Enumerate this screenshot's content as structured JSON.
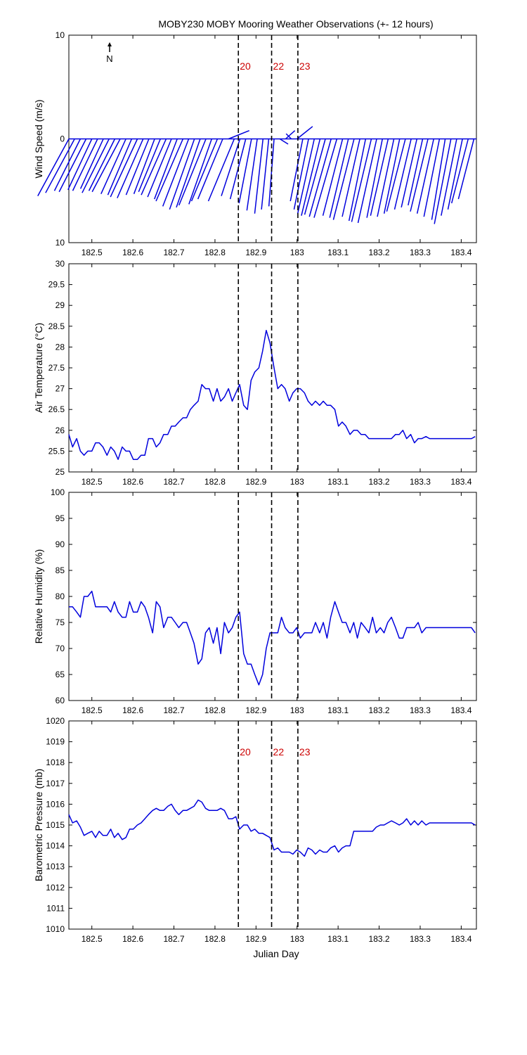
{
  "figure": {
    "title": "MOBY230 MOBY Mooring Weather Observations (+- 12 hours)",
    "xlabel": "Julian Day",
    "north_label": "N",
    "event_labels": [
      "20",
      "22",
      "23"
    ],
    "event_days": [
      182.857,
      182.938,
      183.002
    ],
    "colors": {
      "series": "#0000dd",
      "event_text": "#cc0000",
      "axes": "#000000"
    }
  },
  "chart_data": [
    {
      "type": "line",
      "subtype": "wind-stick",
      "ylabel": "Wind Speed (m/s)",
      "ylim": [
        -10,
        10
      ],
      "yticks": [
        10,
        0,
        10
      ],
      "xlim": [
        182.444,
        183.437
      ],
      "xticks": [
        "182.5",
        "182.6",
        "182.7",
        "182.8",
        "182.9",
        "183",
        "183.1",
        "183.2",
        "183.3",
        "183.4"
      ],
      "xtick_values": [
        182.5,
        182.6,
        182.7,
        182.8,
        182.9,
        183.0,
        183.1,
        183.2,
        183.3,
        183.4
      ],
      "x": [
        182.444,
        182.458,
        182.472,
        182.486,
        182.5,
        182.514,
        182.528,
        182.542,
        182.556,
        182.569,
        182.583,
        182.597,
        182.611,
        182.625,
        182.639,
        182.653,
        182.667,
        182.681,
        182.694,
        182.708,
        182.722,
        182.736,
        182.75,
        182.764,
        182.778,
        182.792,
        182.806,
        182.819,
        182.833,
        182.847,
        182.861,
        182.875,
        182.889,
        182.903,
        182.917,
        182.931,
        182.944,
        182.958,
        182.972,
        182.986,
        183.0,
        183.014,
        183.028,
        183.042,
        183.056,
        183.069,
        183.083,
        183.097,
        183.111,
        183.125,
        183.139,
        183.153,
        183.167,
        183.181,
        183.194,
        183.208,
        183.222,
        183.236,
        183.25,
        183.264,
        183.278,
        183.292,
        183.306,
        183.319,
        183.333,
        183.347,
        183.361,
        183.375,
        183.389,
        183.403,
        183.417,
        183.431
      ],
      "u": [
        -3.0,
        -2.8,
        -2.5,
        -2.6,
        -2.3,
        -2.4,
        -2.2,
        -2.6,
        -2.5,
        -2.7,
        -2.4,
        -2.3,
        -2.6,
        -2.5,
        -2.2,
        -2.0,
        -2.1,
        -2.4,
        -2.3,
        -2.2,
        -2.6,
        -2.5,
        -2.4,
        -2.3,
        -2.6,
        -2.2,
        -2.5,
        -2.4,
        2.0,
        -2.5,
        -1.8,
        -1.5,
        -1.2,
        -1.0,
        -0.8,
        -0.7,
        -0.5,
        0.8,
        0.9,
        -0.5,
        1.5,
        -1.2,
        -1.4,
        -1.6,
        -1.8,
        -2.0,
        -2.1,
        -2.2,
        -1.9,
        -1.8,
        -2.0,
        -1.7,
        -1.6,
        -1.9,
        -1.8,
        -1.5,
        -1.7,
        -1.6,
        -1.5,
        -1.8,
        -1.6,
        -1.5,
        -1.4,
        -1.7,
        -1.6,
        -1.5,
        -1.3,
        -1.6,
        -1.5,
        -1.4,
        -1.6,
        -1.5
      ],
      "v": [
        -5.5,
        -5.2,
        -5.0,
        -5.1,
        -4.9,
        -5.0,
        -4.8,
        -5.2,
        -5.0,
        -5.1,
        -5.3,
        -5.4,
        -5.6,
        -5.7,
        -5.4,
        -5.3,
        -5.1,
        -5.4,
        -5.6,
        -5.8,
        -6.0,
        -6.5,
        -6.8,
        -6.6,
        -6.4,
        -6.3,
        -6.0,
        -5.8,
        0.8,
        -6.0,
        -5.5,
        -5.8,
        -6.2,
        -6.9,
        -7.2,
        -6.8,
        -6.5,
        -0.5,
        0.8,
        0.5,
        1.2,
        -6.0,
        -6.8,
        -7.2,
        -7.4,
        -7.3,
        -7.5,
        -7.6,
        -7.4,
        -7.6,
        -7.8,
        -7.5,
        -7.9,
        -8.0,
        -8.1,
        -7.6,
        -7.4,
        -7.5,
        -7.2,
        -7.0,
        -6.8,
        -6.6,
        -6.4,
        -7.0,
        -7.2,
        -7.5,
        -7.8,
        -8.2,
        -7.4,
        -6.8,
        -6.2,
        -5.8
      ]
    },
    {
      "type": "line",
      "ylabel": "Air Temperature (°C)",
      "ylim": [
        25,
        30
      ],
      "yticks": [
        25,
        25.5,
        26,
        26.5,
        27,
        27.5,
        28,
        28.5,
        29,
        29.5,
        30
      ],
      "xlim": [
        182.444,
        183.437
      ],
      "xticks": [
        "182.5",
        "182.6",
        "182.7",
        "182.8",
        "182.9",
        "183",
        "183.1",
        "183.2",
        "183.3",
        "183.4"
      ],
      "xtick_values": [
        182.5,
        182.6,
        182.7,
        182.8,
        182.9,
        183.0,
        183.1,
        183.2,
        183.3,
        183.4
      ],
      "x": [
        182.444,
        182.453,
        182.463,
        182.472,
        182.481,
        182.49,
        182.5,
        182.509,
        182.518,
        182.527,
        182.537,
        182.546,
        182.555,
        182.564,
        182.574,
        182.583,
        182.592,
        182.601,
        182.611,
        182.62,
        182.629,
        182.638,
        182.648,
        182.657,
        182.666,
        182.675,
        182.685,
        182.694,
        182.703,
        182.712,
        182.722,
        182.731,
        182.74,
        182.749,
        182.759,
        182.768,
        182.777,
        182.786,
        182.796,
        182.805,
        182.814,
        182.823,
        182.833,
        182.842,
        182.851,
        182.86,
        182.87,
        182.879,
        182.888,
        182.897,
        182.907,
        182.916,
        182.925,
        182.934,
        182.944,
        182.953,
        182.962,
        182.971,
        182.981,
        182.99,
        182.999,
        183.008,
        183.018,
        183.027,
        183.036,
        183.045,
        183.055,
        183.064,
        183.073,
        183.082,
        183.092,
        183.101,
        183.11,
        183.119,
        183.129,
        183.138,
        183.147,
        183.156,
        183.166,
        183.175,
        183.184,
        183.193,
        183.203,
        183.212,
        183.221,
        183.23,
        183.24,
        183.249,
        183.258,
        183.267,
        183.277,
        183.286,
        183.295,
        183.304,
        183.314,
        183.323,
        183.332,
        183.341,
        183.351,
        183.36,
        183.369,
        183.378,
        183.388,
        183.397,
        183.406,
        183.415,
        183.425,
        183.434
      ],
      "y": [
        25.9,
        25.6,
        25.8,
        25.5,
        25.4,
        25.5,
        25.5,
        25.7,
        25.7,
        25.6,
        25.4,
        25.6,
        25.5,
        25.3,
        25.6,
        25.5,
        25.5,
        25.3,
        25.3,
        25.4,
        25.4,
        25.8,
        25.8,
        25.6,
        25.7,
        25.9,
        25.9,
        26.1,
        26.1,
        26.2,
        26.3,
        26.3,
        26.5,
        26.6,
        26.7,
        27.1,
        27.0,
        27.0,
        26.7,
        27.0,
        26.7,
        26.8,
        27.0,
        26.7,
        26.9,
        27.1,
        26.6,
        26.5,
        27.2,
        27.4,
        27.5,
        27.9,
        28.4,
        28.1,
        27.5,
        27.0,
        27.1,
        27.0,
        26.7,
        26.9,
        27.0,
        27.0,
        26.9,
        26.7,
        26.6,
        26.7,
        26.6,
        26.7,
        26.6,
        26.6,
        26.5,
        26.1,
        26.2,
        26.1,
        25.9,
        26.0,
        26.0,
        25.9,
        25.9,
        25.8,
        25.8,
        25.8,
        25.8,
        25.8,
        25.8,
        25.8,
        25.9,
        25.9,
        26.0,
        25.8,
        25.9,
        25.7,
        25.8,
        25.8,
        25.85,
        25.8,
        25.8,
        25.8,
        25.8,
        25.8,
        25.8,
        25.8,
        25.8,
        25.8,
        25.8,
        25.8,
        25.8,
        25.85
      ]
    },
    {
      "type": "line",
      "ylabel": "Relative Humidity (%)",
      "ylim": [
        60,
        100
      ],
      "yticks": [
        60,
        65,
        70,
        75,
        80,
        85,
        90,
        95,
        100
      ],
      "xlim": [
        182.444,
        183.437
      ],
      "xticks": [
        "182.5",
        "182.6",
        "182.7",
        "182.8",
        "182.9",
        "183",
        "183.1",
        "183.2",
        "183.3",
        "183.4"
      ],
      "xtick_values": [
        182.5,
        182.6,
        182.7,
        182.8,
        182.9,
        183.0,
        183.1,
        183.2,
        183.3,
        183.4
      ],
      "x": [
        182.444,
        182.453,
        182.463,
        182.472,
        182.481,
        182.49,
        182.5,
        182.509,
        182.518,
        182.527,
        182.537,
        182.546,
        182.555,
        182.564,
        182.574,
        182.583,
        182.592,
        182.601,
        182.611,
        182.62,
        182.629,
        182.638,
        182.648,
        182.657,
        182.666,
        182.675,
        182.685,
        182.694,
        182.703,
        182.712,
        182.722,
        182.731,
        182.74,
        182.749,
        182.759,
        182.768,
        182.777,
        182.786,
        182.796,
        182.805,
        182.814,
        182.823,
        182.833,
        182.842,
        182.851,
        182.86,
        182.87,
        182.879,
        182.888,
        182.897,
        182.907,
        182.916,
        182.925,
        182.934,
        182.944,
        182.953,
        182.962,
        182.971,
        182.981,
        182.99,
        182.999,
        183.008,
        183.018,
        183.027,
        183.036,
        183.045,
        183.055,
        183.064,
        183.073,
        183.082,
        183.092,
        183.101,
        183.11,
        183.119,
        183.129,
        183.138,
        183.147,
        183.156,
        183.166,
        183.175,
        183.184,
        183.193,
        183.203,
        183.212,
        183.221,
        183.23,
        183.24,
        183.249,
        183.258,
        183.267,
        183.277,
        183.286,
        183.295,
        183.304,
        183.314,
        183.323,
        183.332,
        183.341,
        183.351,
        183.36,
        183.369,
        183.378,
        183.388,
        183.397,
        183.406,
        183.415,
        183.425,
        183.434
      ],
      "y": [
        78,
        78,
        77,
        76,
        80,
        80,
        81,
        78,
        78,
        78,
        78,
        77,
        79,
        77,
        76,
        76,
        79,
        77,
        77,
        79,
        78,
        76,
        73,
        79,
        78,
        74,
        76,
        76,
        75,
        74,
        75,
        75,
        73,
        71,
        67,
        68,
        73,
        74,
        71,
        74,
        69,
        75,
        73,
        74,
        76,
        77,
        69,
        67,
        67,
        65,
        63,
        65,
        70,
        73,
        73,
        73,
        76,
        74,
        73,
        73,
        74,
        72,
        73,
        73,
        73,
        75,
        73,
        75,
        72,
        76,
        79,
        77,
        75,
        75,
        73,
        75,
        72,
        75,
        74,
        73,
        76,
        73,
        74,
        73,
        75,
        76,
        74,
        72,
        72,
        74,
        74,
        74,
        75,
        73,
        74,
        74,
        74,
        74,
        74,
        74,
        74,
        74,
        74,
        74,
        74,
        74,
        74,
        73
      ]
    },
    {
      "type": "line",
      "ylabel": "Barometric Pressure (mb)",
      "ylim": [
        1010,
        1020
      ],
      "yticks": [
        1010,
        1011,
        1012,
        1013,
        1014,
        1015,
        1016,
        1017,
        1018,
        1019,
        1020
      ],
      "xlim": [
        182.444,
        183.437
      ],
      "xticks": [
        "182.5",
        "182.6",
        "182.7",
        "182.8",
        "182.9",
        "183",
        "183.1",
        "183.2",
        "183.3",
        "183.4"
      ],
      "xtick_values": [
        182.5,
        182.6,
        182.7,
        182.8,
        182.9,
        183.0,
        183.1,
        183.2,
        183.3,
        183.4
      ],
      "x": [
        182.444,
        182.453,
        182.463,
        182.472,
        182.481,
        182.49,
        182.5,
        182.509,
        182.518,
        182.527,
        182.537,
        182.546,
        182.555,
        182.564,
        182.574,
        182.583,
        182.592,
        182.601,
        182.611,
        182.62,
        182.629,
        182.638,
        182.648,
        182.657,
        182.666,
        182.675,
        182.685,
        182.694,
        182.703,
        182.712,
        182.722,
        182.731,
        182.74,
        182.749,
        182.759,
        182.768,
        182.777,
        182.786,
        182.796,
        182.805,
        182.814,
        182.823,
        182.833,
        182.842,
        182.851,
        182.86,
        182.87,
        182.879,
        182.888,
        182.897,
        182.907,
        182.916,
        182.925,
        182.934,
        182.944,
        182.953,
        182.962,
        182.971,
        182.981,
        182.99,
        182.999,
        183.008,
        183.018,
        183.027,
        183.036,
        183.045,
        183.055,
        183.064,
        183.073,
        183.082,
        183.092,
        183.101,
        183.11,
        183.119,
        183.129,
        183.138,
        183.147,
        183.156,
        183.166,
        183.175,
        183.184,
        183.193,
        183.203,
        183.212,
        183.221,
        183.23,
        183.24,
        183.249,
        183.258,
        183.267,
        183.277,
        183.286,
        183.295,
        183.304,
        183.314,
        183.323,
        183.332,
        183.341,
        183.351,
        183.36,
        183.369,
        183.378,
        183.388,
        183.397,
        183.406,
        183.415,
        183.425,
        183.434
      ],
      "y": [
        1015.5,
        1015.1,
        1015.2,
        1014.9,
        1014.5,
        1014.6,
        1014.7,
        1014.4,
        1014.7,
        1014.5,
        1014.5,
        1014.8,
        1014.4,
        1014.6,
        1014.3,
        1014.4,
        1014.8,
        1014.8,
        1015.0,
        1015.1,
        1015.3,
        1015.5,
        1015.7,
        1015.8,
        1015.7,
        1015.7,
        1015.9,
        1016.0,
        1015.7,
        1015.5,
        1015.7,
        1015.7,
        1015.8,
        1015.9,
        1016.2,
        1016.1,
        1015.8,
        1015.7,
        1015.7,
        1015.7,
        1015.8,
        1015.7,
        1015.3,
        1015.3,
        1015.4,
        1014.8,
        1015.0,
        1015.0,
        1014.7,
        1014.8,
        1014.6,
        1014.6,
        1014.5,
        1014.4,
        1013.8,
        1013.9,
        1013.7,
        1013.7,
        1013.7,
        1013.6,
        1013.8,
        1013.7,
        1013.5,
        1013.9,
        1013.8,
        1013.6,
        1013.8,
        1013.7,
        1013.7,
        1013.9,
        1014.0,
        1013.7,
        1013.9,
        1014.0,
        1014.0,
        1014.7,
        1014.7,
        1014.7,
        1014.7,
        1014.7,
        1014.7,
        1014.9,
        1015.0,
        1015.0,
        1015.1,
        1015.2,
        1015.1,
        1015.0,
        1015.1,
        1015.3,
        1015.0,
        1015.2,
        1015.0,
        1015.2,
        1015.0,
        1015.1,
        1015.1,
        1015.1,
        1015.1,
        1015.1,
        1015.1,
        1015.1,
        1015.1,
        1015.1,
        1015.1,
        1015.1,
        1015.1,
        1015.0
      ]
    }
  ]
}
